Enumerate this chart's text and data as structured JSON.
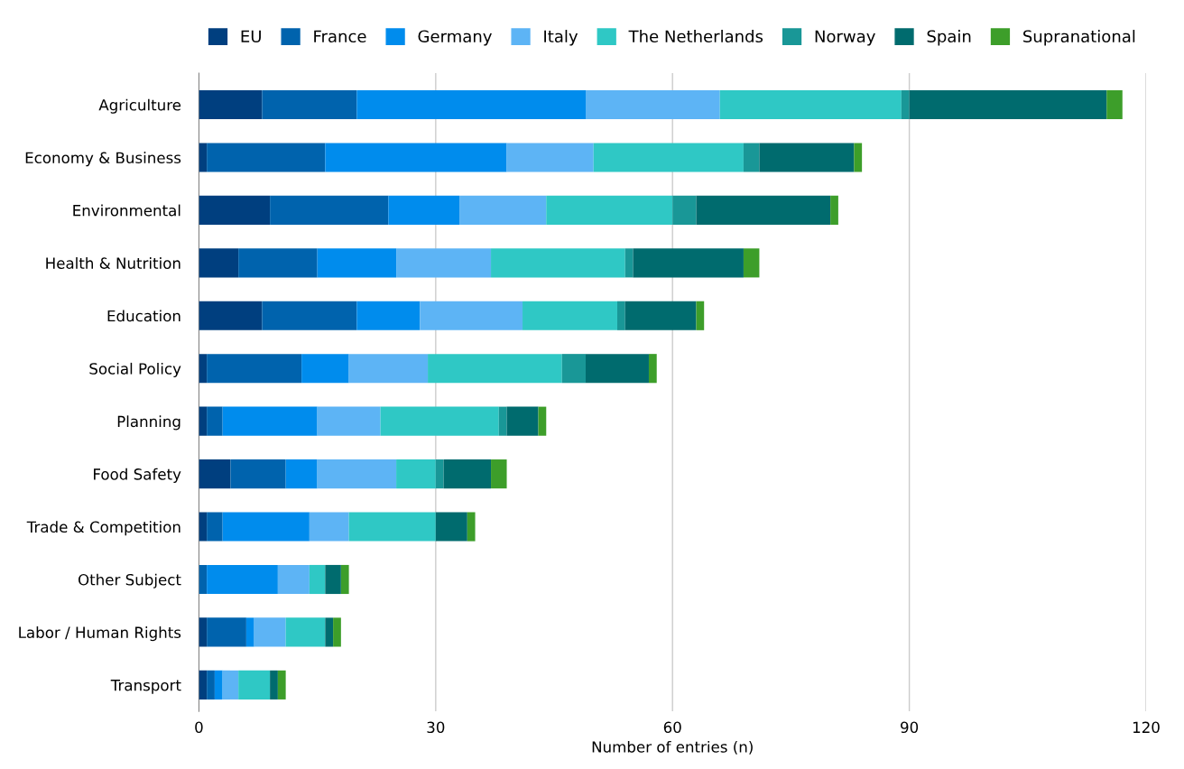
{
  "chart_data": {
    "type": "bar",
    "orientation": "horizontal",
    "stacked": true,
    "xlabel": "Number of entries (n)",
    "categories": [
      "Agriculture",
      "Economy & Business",
      "Environmental",
      "Health & Nutrition",
      "Education",
      "Social Policy",
      "Planning",
      "Food Safety",
      "Trade & Competition",
      "Other Subject",
      "Labor / Human Rights",
      "Transport"
    ],
    "series": [
      {
        "name": "EU",
        "color": "#003f7f",
        "values": [
          8,
          1,
          9,
          5,
          8,
          1,
          1,
          4,
          1,
          0,
          1,
          1
        ]
      },
      {
        "name": "France",
        "color": "#0063ad",
        "values": [
          12,
          15,
          15,
          10,
          12,
          12,
          2,
          7,
          2,
          1,
          5,
          1
        ]
      },
      {
        "name": "Germany",
        "color": "#008ced",
        "values": [
          29,
          23,
          9,
          10,
          8,
          6,
          12,
          4,
          11,
          9,
          1,
          1
        ]
      },
      {
        "name": "Italy",
        "color": "#5db4f5",
        "values": [
          17,
          11,
          11,
          12,
          13,
          10,
          8,
          10,
          5,
          4,
          4,
          2
        ]
      },
      {
        "name": "The Netherlands",
        "color": "#2fc8c5",
        "values": [
          23,
          19,
          16,
          17,
          12,
          17,
          15,
          5,
          11,
          2,
          5,
          4
        ]
      },
      {
        "name": "Norway",
        "color": "#199797",
        "values": [
          1,
          2,
          3,
          1,
          1,
          3,
          1,
          1,
          0,
          0,
          0,
          0
        ]
      },
      {
        "name": "Spain",
        "color": "#006b6e",
        "values": [
          25,
          12,
          17,
          14,
          9,
          8,
          4,
          6,
          4,
          2,
          1,
          1
        ]
      },
      {
        "name": "Supranational",
        "color": "#3d9e2a",
        "values": [
          2,
          1,
          1,
          2,
          1,
          1,
          1,
          2,
          1,
          1,
          1,
          1
        ]
      }
    ],
    "xlim": [
      0,
      120
    ],
    "xticks": [
      0,
      30,
      60,
      90,
      120
    ],
    "grid": "x",
    "legend": "top"
  }
}
